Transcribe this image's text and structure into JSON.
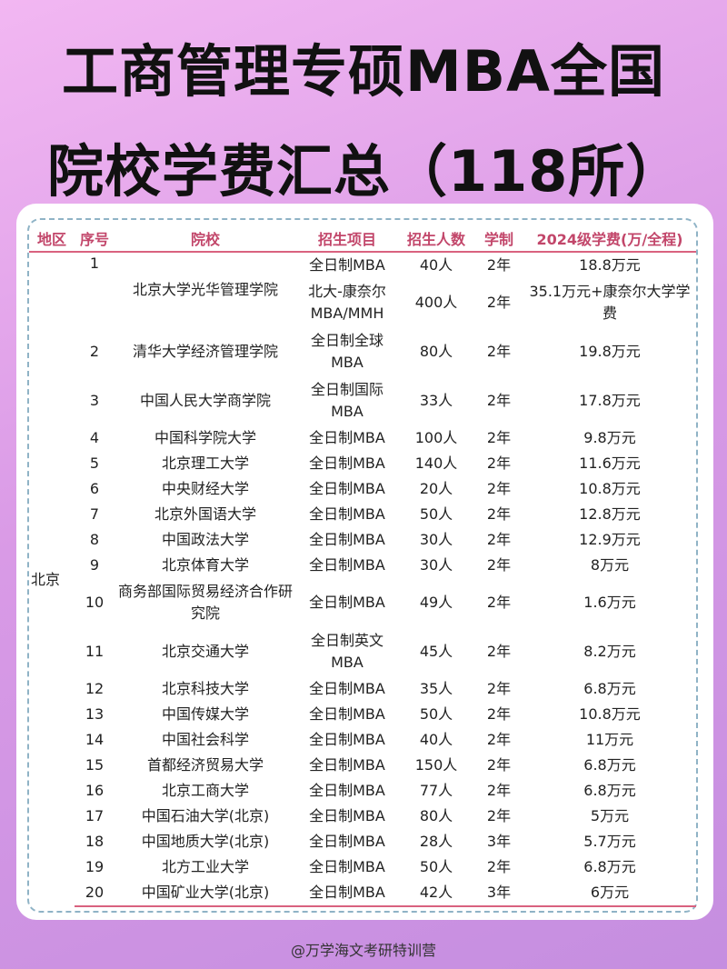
{
  "title": {
    "line1": "工商管理专硕MBA全国",
    "line2": "院校学费汇总（118所）"
  },
  "table": {
    "headers": [
      "地区",
      "序号",
      "院校",
      "招生项目",
      "招生人数",
      "学制",
      "2024级学费(万/全程)"
    ],
    "region": "北京",
    "rows": [
      {
        "no": "1",
        "school": "北京大学光华管理学院",
        "programs": [
          {
            "project": "全日制MBA",
            "count": "40人",
            "years": "2年",
            "fee": "18.8万元"
          },
          {
            "project": "北大-康奈尔MBA/MMH",
            "count": "400人",
            "years": "2年",
            "fee": "35.1万元+康奈尔大学学费"
          }
        ]
      },
      {
        "no": "2",
        "school": "清华大学经济管理学院",
        "programs": [
          {
            "project": "全日制全球MBA",
            "count": "80人",
            "years": "2年",
            "fee": "19.8万元"
          }
        ]
      },
      {
        "no": "3",
        "school": "中国人民大学商学院",
        "programs": [
          {
            "project": "全日制国际MBA",
            "count": "33人",
            "years": "2年",
            "fee": "17.8万元"
          }
        ]
      },
      {
        "no": "4",
        "school": "中国科学院大学",
        "programs": [
          {
            "project": "全日制MBA",
            "count": "100人",
            "years": "2年",
            "fee": "9.8万元"
          }
        ]
      },
      {
        "no": "5",
        "school": "北京理工大学",
        "programs": [
          {
            "project": "全日制MBA",
            "count": "140人",
            "years": "2年",
            "fee": "11.6万元"
          }
        ]
      },
      {
        "no": "6",
        "school": "中央财经大学",
        "programs": [
          {
            "project": "全日制MBA",
            "count": "20人",
            "years": "2年",
            "fee": "10.8万元"
          }
        ]
      },
      {
        "no": "7",
        "school": "北京外国语大学",
        "programs": [
          {
            "project": "全日制MBA",
            "count": "50人",
            "years": "2年",
            "fee": "12.8万元"
          }
        ]
      },
      {
        "no": "8",
        "school": "中国政法大学",
        "programs": [
          {
            "project": "全日制MBA",
            "count": "30人",
            "years": "2年",
            "fee": "12.9万元"
          }
        ]
      },
      {
        "no": "9",
        "school": "北京体育大学",
        "programs": [
          {
            "project": "全日制MBA",
            "count": "30人",
            "years": "2年",
            "fee": "8万元"
          }
        ]
      },
      {
        "no": "10",
        "school": "商务部国际贸易经济合作研究院",
        "programs": [
          {
            "project": "全日制MBA",
            "count": "49人",
            "years": "2年",
            "fee": "1.6万元"
          }
        ]
      },
      {
        "no": "11",
        "school": "北京交通大学",
        "programs": [
          {
            "project": "全日制英文MBA",
            "count": "45人",
            "years": "2年",
            "fee": "8.2万元"
          }
        ]
      },
      {
        "no": "12",
        "school": "北京科技大学",
        "programs": [
          {
            "project": "全日制MBA",
            "count": "35人",
            "years": "2年",
            "fee": "6.8万元"
          }
        ]
      },
      {
        "no": "13",
        "school": "中国传媒大学",
        "programs": [
          {
            "project": "全日制MBA",
            "count": "50人",
            "years": "2年",
            "fee": "10.8万元"
          }
        ]
      },
      {
        "no": "14",
        "school": "中国社会科学",
        "programs": [
          {
            "project": "全日制MBA",
            "count": "40人",
            "years": "2年",
            "fee": "11万元"
          }
        ]
      },
      {
        "no": "15",
        "school": "首都经济贸易大学",
        "programs": [
          {
            "project": "全日制MBA",
            "count": "150人",
            "years": "2年",
            "fee": "6.8万元"
          }
        ]
      },
      {
        "no": "16",
        "school": "北京工商大学",
        "programs": [
          {
            "project": "全日制MBA",
            "count": "77人",
            "years": "2年",
            "fee": "6.8万元"
          }
        ]
      },
      {
        "no": "17",
        "school": "中国石油大学(北京)",
        "programs": [
          {
            "project": "全日制MBA",
            "count": "80人",
            "years": "2年",
            "fee": "5万元"
          }
        ]
      },
      {
        "no": "18",
        "school": "中国地质大学(北京)",
        "programs": [
          {
            "project": "全日制MBA",
            "count": "28人",
            "years": "3年",
            "fee": "5.7万元"
          }
        ]
      },
      {
        "no": "19",
        "school": "北方工业大学",
        "programs": [
          {
            "project": "全日制MBA",
            "count": "50人",
            "years": "2年",
            "fee": "6.8万元"
          }
        ]
      },
      {
        "no": "20",
        "school": "中国矿业大学(北京)",
        "programs": [
          {
            "project": "全日制MBA",
            "count": "42人",
            "years": "3年",
            "fee": "6万元"
          }
        ]
      }
    ]
  },
  "footer": "@万学海文考研特训营"
}
